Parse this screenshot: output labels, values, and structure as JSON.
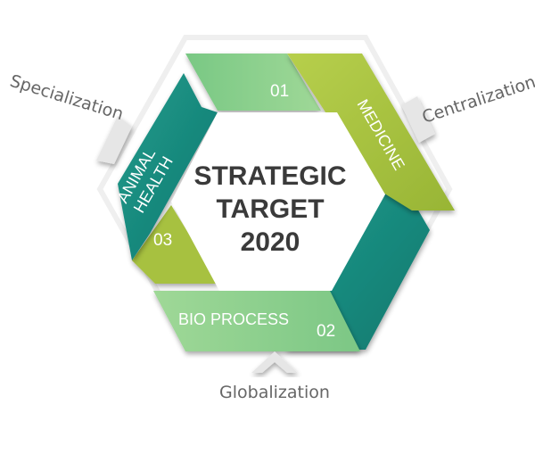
{
  "center": {
    "line1": "STRATEGIC",
    "line2": "TARGET",
    "line3": "2020"
  },
  "segments": {
    "top": {
      "number": "01"
    },
    "medicine": {
      "label": "MEDICINE"
    },
    "bio_process": {
      "label": "BIO PROCESS",
      "number": "02"
    },
    "animal_health": {
      "line1": "ANIMAL",
      "line2": "HEALTH",
      "number": "03"
    }
  },
  "outer_labels": {
    "specialization": "Specialization",
    "centralization": "Centralization",
    "globalization": "Globalization"
  },
  "colors": {
    "light_green": "#8fce8d",
    "lime_green": "#a5bf3d",
    "teal": "#1e9788",
    "text_dark": "#3a3a3a",
    "text_gray": "#666666",
    "arrow_gray": "#e2e2e2"
  }
}
